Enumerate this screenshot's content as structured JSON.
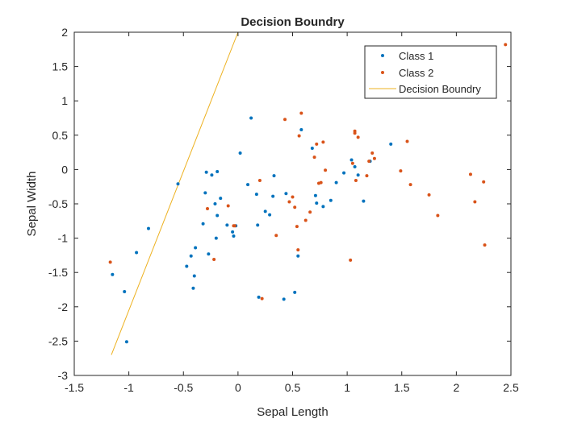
{
  "chart_data": {
    "type": "scatter",
    "title": "Decision Boundry",
    "xlabel": "Sepal Length",
    "ylabel": "Sepal Width",
    "xlim": [
      -1.5,
      2.5
    ],
    "ylim": [
      -3,
      2
    ],
    "xticks": [
      "-1.5",
      "-1",
      "-0.5",
      "0",
      "0.5",
      "1",
      "1.5",
      "2",
      "2.5"
    ],
    "yticks": [
      "-3",
      "-2.5",
      "-2",
      "-1.5",
      "-1",
      "-0.5",
      "0",
      "0.5",
      "1",
      "1.5",
      "2"
    ],
    "grid": false,
    "legend_position": "top-right",
    "series": [
      {
        "name": "Class 1",
        "color": "#0072BD",
        "points": [
          [
            -1.15,
            -1.53
          ],
          [
            -1.04,
            -1.78
          ],
          [
            -1.02,
            -2.51
          ],
          [
            -0.93,
            -1.21
          ],
          [
            -0.82,
            -0.86
          ],
          [
            -0.55,
            -0.21
          ],
          [
            -0.47,
            -1.41
          ],
          [
            -0.43,
            -1.26
          ],
          [
            -0.41,
            -1.73
          ],
          [
            -0.4,
            -1.55
          ],
          [
            -0.39,
            -1.14
          ],
          [
            -0.32,
            -0.79
          ],
          [
            -0.3,
            -0.34
          ],
          [
            -0.29,
            -0.04
          ],
          [
            -0.27,
            -1.23
          ],
          [
            -0.24,
            -0.08
          ],
          [
            -0.21,
            -0.5
          ],
          [
            -0.19,
            -0.03
          ],
          [
            -0.19,
            -0.67
          ],
          [
            -0.2,
            -1.0
          ],
          [
            -0.16,
            -0.42
          ],
          [
            -0.1,
            -0.81
          ],
          [
            -0.05,
            -0.91
          ],
          [
            -0.04,
            -0.97
          ],
          [
            -0.02,
            -0.82
          ],
          [
            0.02,
            0.24
          ],
          [
            0.09,
            -0.22
          ],
          [
            0.12,
            0.75
          ],
          [
            0.17,
            -0.36
          ],
          [
            0.18,
            -0.81
          ],
          [
            0.19,
            -1.86
          ],
          [
            0.25,
            -0.61
          ],
          [
            0.29,
            -0.66
          ],
          [
            0.32,
            -0.39
          ],
          [
            0.33,
            -0.09
          ],
          [
            0.42,
            -1.89
          ],
          [
            0.44,
            -0.35
          ],
          [
            0.52,
            -1.79
          ],
          [
            0.55,
            -1.26
          ],
          [
            0.58,
            0.58
          ],
          [
            0.68,
            0.31
          ],
          [
            0.71,
            -0.38
          ],
          [
            0.72,
            -0.49
          ],
          [
            0.78,
            -0.54
          ],
          [
            0.85,
            -0.45
          ],
          [
            0.9,
            -0.19
          ],
          [
            0.97,
            -0.05
          ],
          [
            1.04,
            0.14
          ],
          [
            1.07,
            0.04
          ],
          [
            1.1,
            -0.08
          ],
          [
            1.15,
            -0.46
          ],
          [
            1.21,
            0.12
          ],
          [
            1.4,
            0.37
          ]
        ]
      },
      {
        "name": "Class 2",
        "color": "#D95319",
        "points": [
          [
            -1.17,
            -1.35
          ],
          [
            -0.28,
            -0.57
          ],
          [
            -0.22,
            -1.31
          ],
          [
            -0.09,
            -0.53
          ],
          [
            -0.04,
            -0.82
          ],
          [
            -0.03,
            -0.82
          ],
          [
            0.2,
            -0.16
          ],
          [
            0.22,
            -1.88
          ],
          [
            0.35,
            -0.96
          ],
          [
            0.43,
            0.73
          ],
          [
            0.47,
            -0.47
          ],
          [
            0.5,
            -0.4
          ],
          [
            0.52,
            -0.55
          ],
          [
            0.54,
            -0.83
          ],
          [
            0.55,
            -1.17
          ],
          [
            0.56,
            0.49
          ],
          [
            0.58,
            0.82
          ],
          [
            0.62,
            -0.74
          ],
          [
            0.66,
            -0.62
          ],
          [
            0.7,
            0.18
          ],
          [
            0.72,
            0.37
          ],
          [
            0.74,
            -0.2
          ],
          [
            0.76,
            -0.19
          ],
          [
            0.78,
            0.4
          ],
          [
            0.8,
            -0.01
          ],
          [
            1.03,
            -1.32
          ],
          [
            1.05,
            0.09
          ],
          [
            1.07,
            0.56
          ],
          [
            1.08,
            -0.16
          ],
          [
            1.07,
            0.53
          ],
          [
            1.1,
            0.47
          ],
          [
            1.18,
            -0.09
          ],
          [
            1.2,
            0.12
          ],
          [
            1.23,
            0.24
          ],
          [
            1.25,
            0.16
          ],
          [
            1.49,
            -0.02
          ],
          [
            1.55,
            0.41
          ],
          [
            1.58,
            -0.22
          ],
          [
            1.75,
            -0.37
          ],
          [
            1.83,
            -0.67
          ],
          [
            2.13,
            -0.07
          ],
          [
            2.17,
            -0.47
          ],
          [
            2.25,
            -0.18
          ],
          [
            2.26,
            -1.1
          ],
          [
            2.45,
            1.82
          ]
        ]
      }
    ],
    "decision_boundary": {
      "name": "Decision Boundry",
      "color": "#EDB120",
      "x": [
        -1.16,
        0.0
      ],
      "y": [
        -2.7,
        2.0
      ]
    }
  }
}
